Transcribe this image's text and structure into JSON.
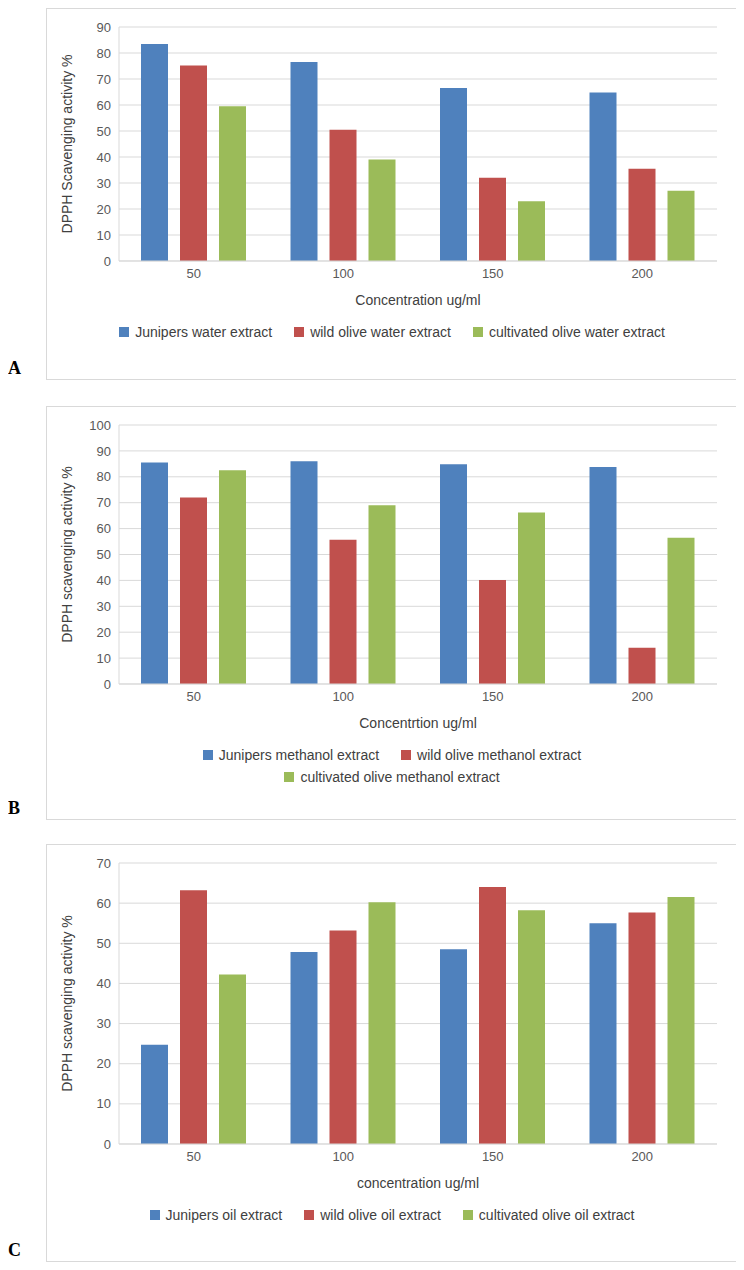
{
  "chart_data": [
    {
      "type": "bar",
      "annotations": [
        "A"
      ],
      "x_label": "Concentration ug/ml",
      "y_label": "DPPH Scavenging activity %",
      "categories": [
        "50",
        "100",
        "150",
        "200"
      ],
      "series": [
        {
          "name": "Junipers water extract",
          "color": "#4f81bd",
          "values": [
            83.5,
            76.5,
            66.5,
            64.8
          ]
        },
        {
          "name": "wild olive water extract",
          "color": "#c0504d",
          "values": [
            75.2,
            50.5,
            32,
            35.5
          ]
        },
        {
          "name": "cultivated olive water extract",
          "color": "#9bbb59",
          "values": [
            59.5,
            39,
            23,
            27
          ]
        }
      ],
      "ylim": [
        0,
        90
      ],
      "yticks": [
        0,
        10,
        20,
        30,
        40,
        50,
        60,
        70,
        80,
        90
      ],
      "grid": true,
      "legend": "bottom"
    },
    {
      "type": "bar",
      "annotations": [
        "B"
      ],
      "x_label": "Concentrtion ug/ml",
      "y_label": "DPPH scavenging activity %",
      "categories": [
        "50",
        "100",
        "150",
        "200"
      ],
      "series": [
        {
          "name": "Junipers methanol extract",
          "color": "#4f81bd",
          "values": [
            85.5,
            86,
            84.8,
            83.8
          ]
        },
        {
          "name": "wild olive methanol extract",
          "color": "#c0504d",
          "values": [
            72,
            55.7,
            40.2,
            14
          ]
        },
        {
          "name": "cultivated olive methanol extract",
          "color": "#9bbb59",
          "values": [
            82.5,
            69,
            66.2,
            56.5
          ]
        }
      ],
      "ylim": [
        0,
        100
      ],
      "yticks": [
        0,
        10,
        20,
        30,
        40,
        50,
        60,
        70,
        80,
        90,
        100
      ],
      "grid": true,
      "legend": "bottom"
    },
    {
      "type": "bar",
      "annotations": [
        "C"
      ],
      "x_label": "concentration ug/ml",
      "y_label": "DPPH scavenging activity %",
      "categories": [
        "50",
        "100",
        "150",
        "200"
      ],
      "series": [
        {
          "name": "Junipers oil extract",
          "color": "#4f81bd",
          "values": [
            24.7,
            47.8,
            48.5,
            55
          ]
        },
        {
          "name": "wild olive oil extract",
          "color": "#c0504d",
          "values": [
            63.2,
            53.2,
            64,
            57.7
          ]
        },
        {
          "name": "cultivated olive oil extract",
          "color": "#9bbb59",
          "values": [
            42.2,
            60.2,
            58.2,
            61.5
          ]
        }
      ],
      "ylim": [
        0,
        70
      ],
      "yticks": [
        0,
        10,
        20,
        30,
        40,
        50,
        60,
        70
      ],
      "grid": true,
      "legend": "bottom"
    }
  ]
}
